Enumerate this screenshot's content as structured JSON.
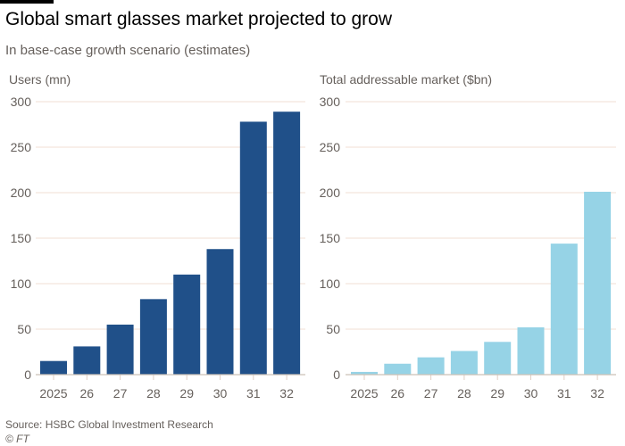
{
  "header": {
    "title": "Global smart glasses market projected to grow",
    "subtitle": "In base-case growth scenario (estimates)"
  },
  "footer": {
    "source": "Source: HSBC Global Investment Research",
    "credit": "© FT"
  },
  "chart_data": [
    {
      "type": "bar",
      "title": "Users (mn)",
      "categories": [
        "2025",
        "26",
        "27",
        "28",
        "29",
        "30",
        "31",
        "32"
      ],
      "values": [
        15,
        31,
        55,
        83,
        110,
        138,
        278,
        289
      ],
      "ylim": [
        0,
        300
      ],
      "yticks": [
        0,
        50,
        100,
        150,
        200,
        250,
        300
      ],
      "grid": true,
      "color": "#205089"
    },
    {
      "type": "bar",
      "title": "Total addressable market ($bn)",
      "categories": [
        "2025",
        "26",
        "27",
        "28",
        "29",
        "30",
        "31",
        "32"
      ],
      "values": [
        3,
        12,
        19,
        26,
        36,
        52,
        144,
        201
      ],
      "ylim": [
        0,
        300
      ],
      "yticks": [
        0,
        50,
        100,
        150,
        200,
        250,
        300
      ],
      "grid": true,
      "color": "#96d3e6"
    }
  ]
}
